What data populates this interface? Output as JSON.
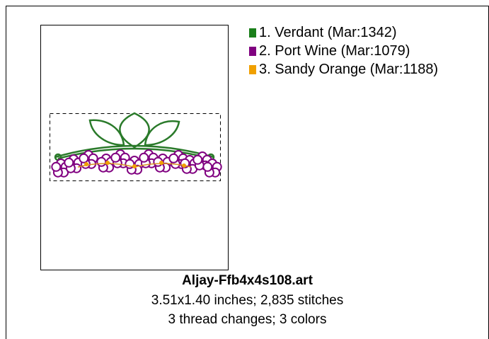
{
  "legend": {
    "items": [
      {
        "label": "1.  Verdant (Mar:1342)",
        "color": "#1a7f1a"
      },
      {
        "label": "2.  Port Wine (Mar:1079)",
        "color": "#800080"
      },
      {
        "label": "3.  Sandy Orange (Mar:1188)",
        "color": "#f0a000"
      }
    ]
  },
  "caption": {
    "title": "Aljay-Ffb4x4s108.art",
    "lines": [
      "3.51x1.40 inches; 2,835 stitches",
      "3 thread changes; 3 colors"
    ]
  }
}
